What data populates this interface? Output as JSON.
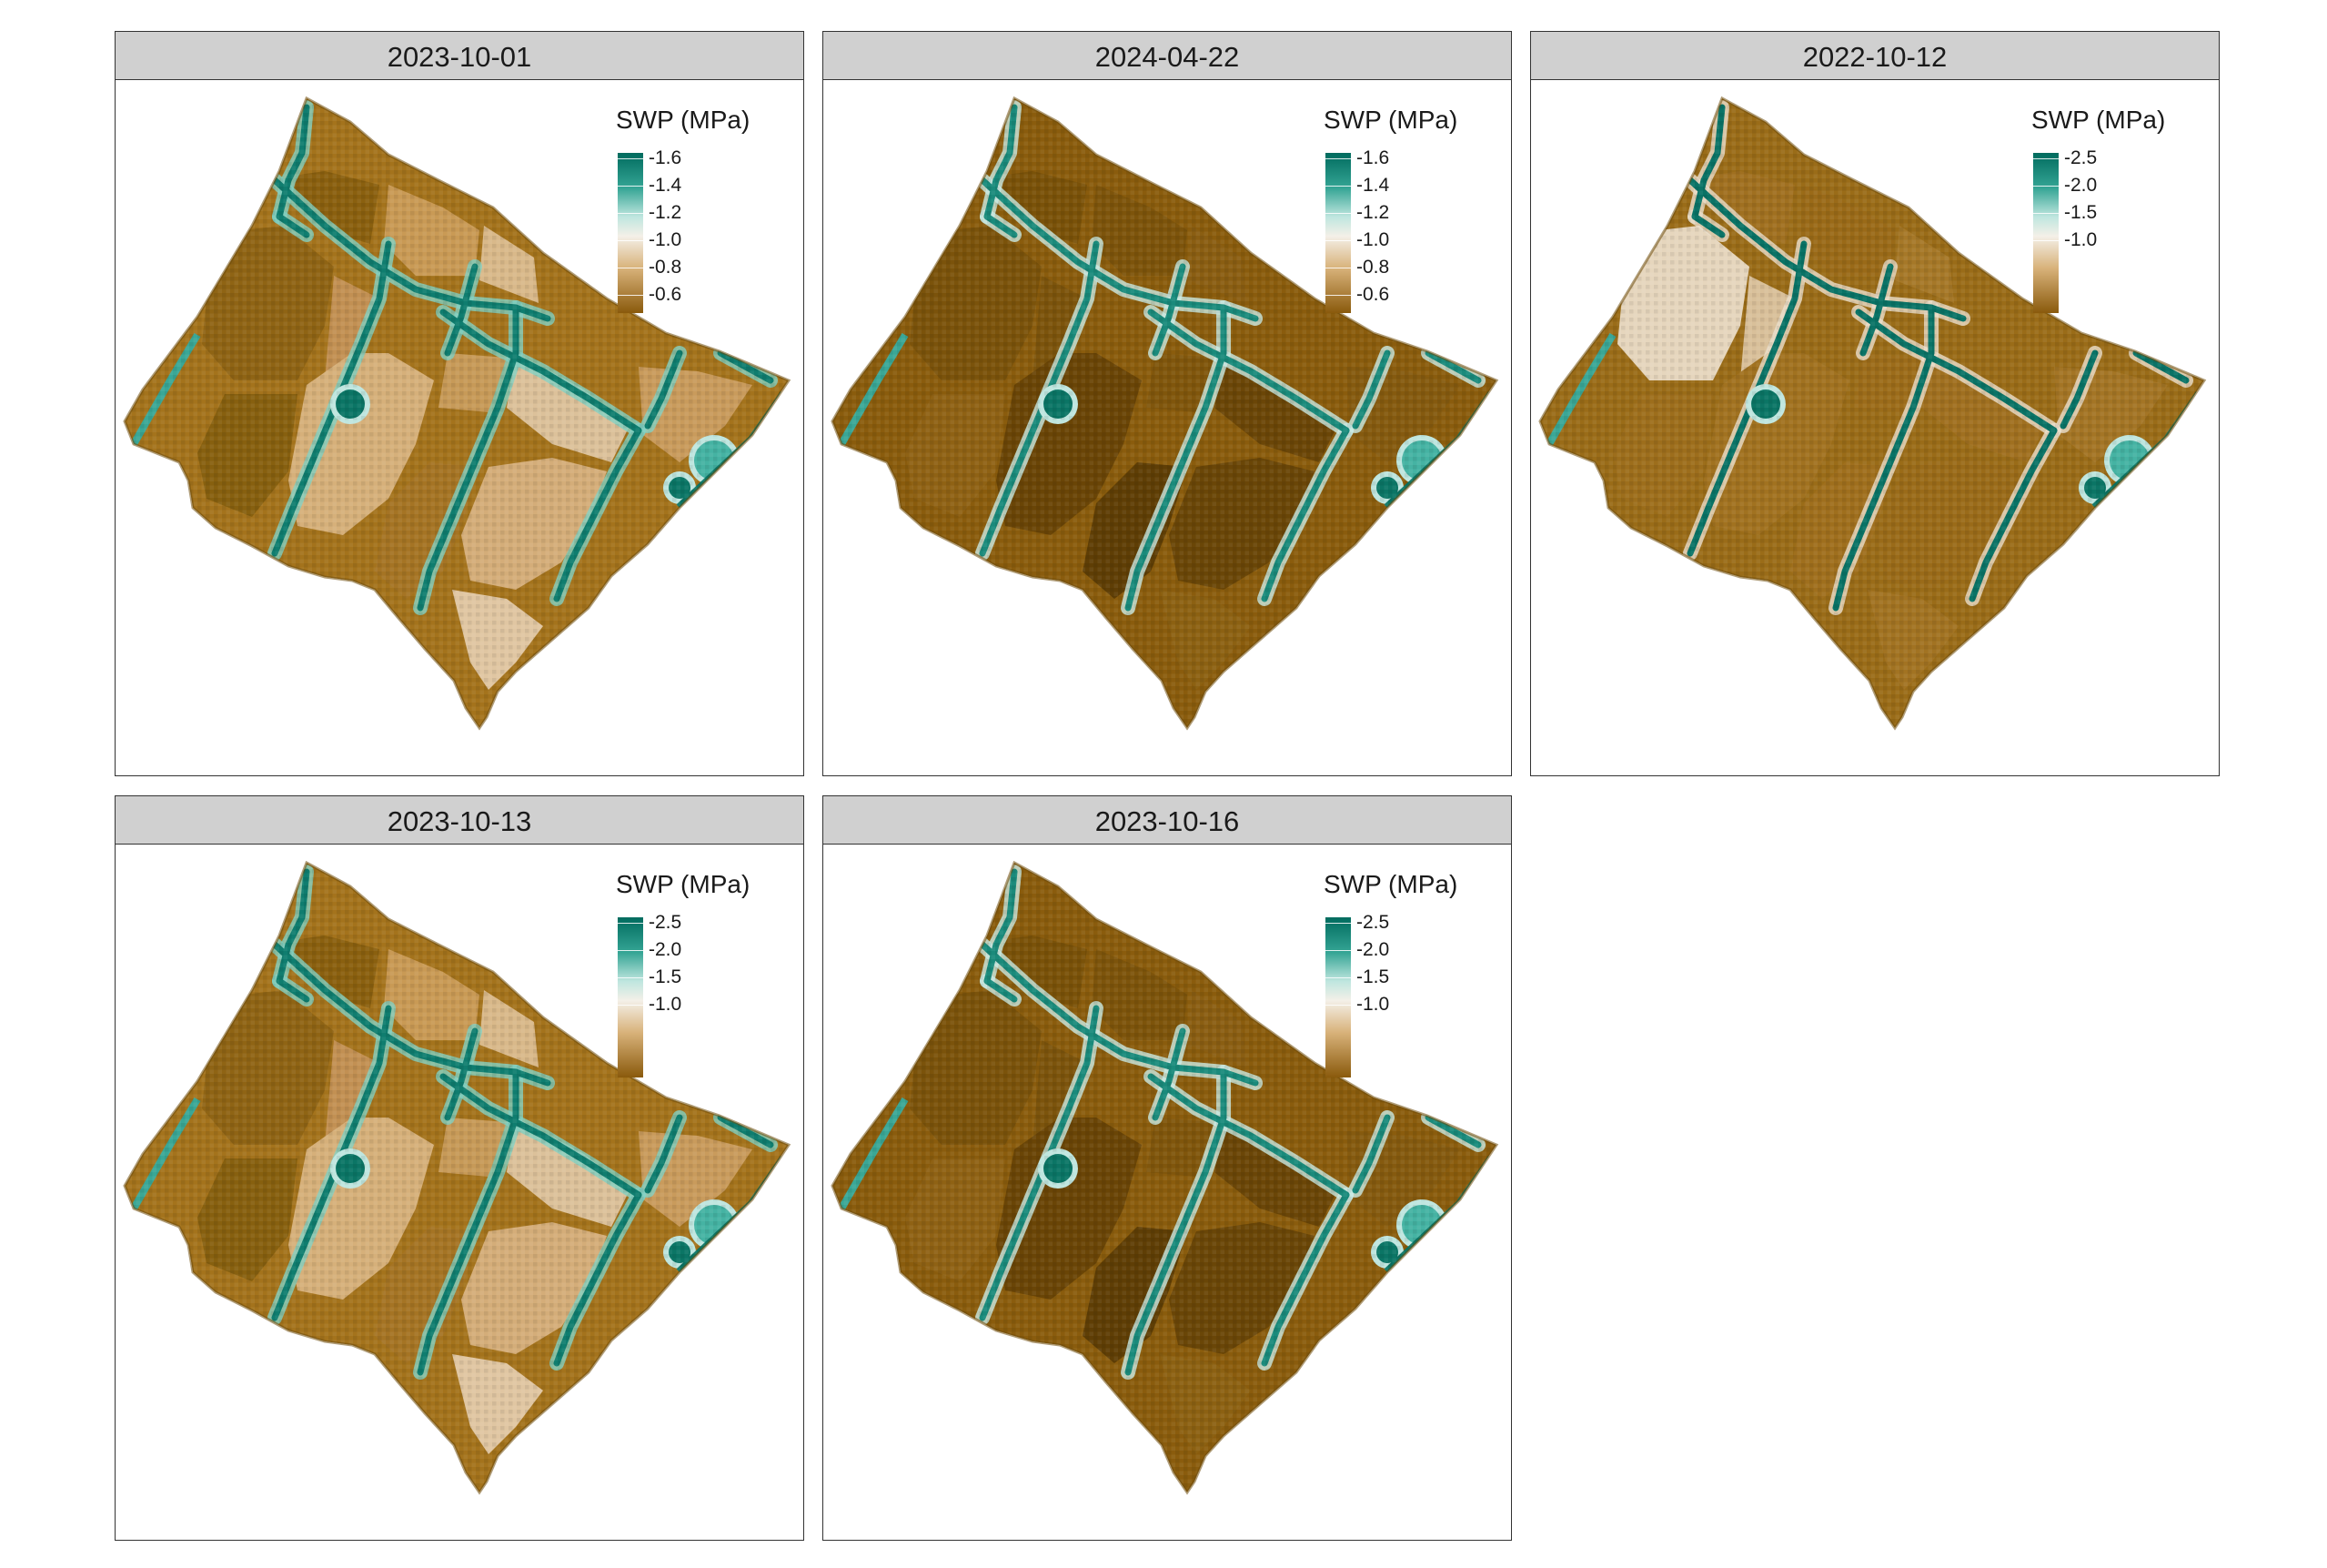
{
  "figure": {
    "legend_title": "SWP (MPa)",
    "colors": {
      "dry_brown": "#8a5a0c",
      "mid_tan": "#d8b27a",
      "neutral": "#f4f0e8",
      "light_teal": "#bfe6df",
      "dark_teal": "#006b5e",
      "strip_bg": "#d0d0d0"
    },
    "panels": [
      {
        "date": "2023-10-01",
        "ticks": [
          "-1.6",
          "-1.4",
          "-1.2",
          "-1.0",
          "-0.8",
          "-0.6"
        ],
        "tone": "mixed"
      },
      {
        "date": "2024-04-22",
        "ticks": [
          "-1.6",
          "-1.4",
          "-1.2",
          "-1.0",
          "-0.8",
          "-0.6"
        ],
        "tone": "dark"
      },
      {
        "date": "2022-10-12",
        "ticks": [
          "-2.5",
          "-2.0",
          "-1.5",
          "-1.0"
        ],
        "tone": "pale"
      },
      {
        "date": "2023-10-13",
        "ticks": [
          "-2.5",
          "-2.0",
          "-1.5",
          "-1.0"
        ],
        "tone": "mixed"
      },
      {
        "date": "2023-10-16",
        "ticks": [
          "-2.5",
          "-2.0",
          "-1.5",
          "-1.0"
        ],
        "tone": "dark"
      }
    ]
  }
}
